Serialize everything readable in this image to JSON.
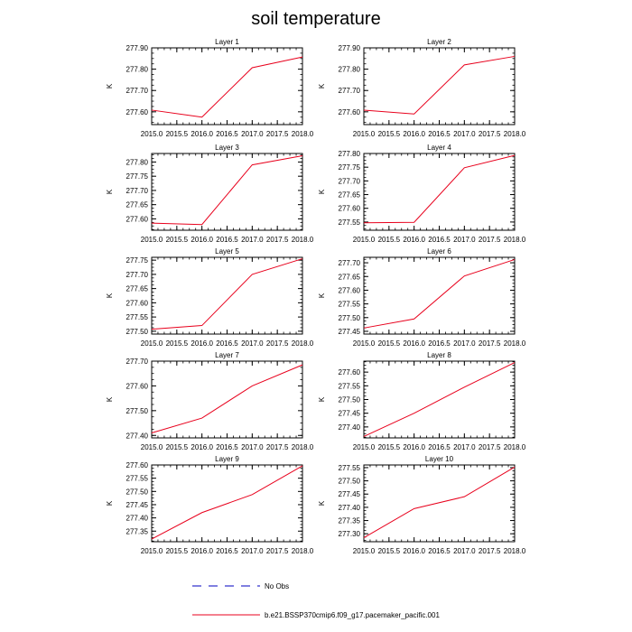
{
  "chart_data": {
    "type": "line",
    "title": "soil temperature",
    "x": [
      2015,
      2016,
      2017,
      2018
    ],
    "xticks": [
      "2015.0",
      "2015.5",
      "2016.0",
      "2016.5",
      "2017.0",
      "2017.5",
      "2018.0"
    ],
    "xlim": [
      2015,
      2018
    ],
    "ylabel": "K",
    "series_color": "#e8001c",
    "panels": [
      {
        "name": "Layer 1",
        "ylim": [
          277.54,
          277.9
        ],
        "yticks": [
          277.6,
          277.7,
          277.8,
          277.9
        ],
        "ytick_labels": [
          "277.60",
          "277.70",
          "277.80",
          "277.90"
        ],
        "values": [
          277.608,
          277.575,
          277.807,
          277.857
        ]
      },
      {
        "name": "Layer 2",
        "ylim": [
          277.54,
          277.9
        ],
        "yticks": [
          277.6,
          277.7,
          277.8,
          277.9
        ],
        "ytick_labels": [
          "277.60",
          "277.70",
          "277.80",
          "277.90"
        ],
        "values": [
          277.608,
          277.59,
          277.82,
          277.86
        ]
      },
      {
        "name": "Layer 3",
        "ylim": [
          277.56,
          277.83
        ],
        "yticks": [
          277.6,
          277.65,
          277.7,
          277.75,
          277.8
        ],
        "ytick_labels": [
          "277.60",
          "277.65",
          "277.70",
          "277.75",
          "277.80"
        ],
        "values": [
          277.585,
          277.58,
          277.79,
          277.822
        ]
      },
      {
        "name": "Layer 4",
        "ylim": [
          277.52,
          277.8
        ],
        "yticks": [
          277.55,
          277.6,
          277.65,
          277.7,
          277.75,
          277.8
        ],
        "ytick_labels": [
          "277.55",
          "277.60",
          "277.65",
          "277.70",
          "277.75",
          "277.80"
        ],
        "values": [
          277.547,
          277.549,
          277.748,
          277.793
        ]
      },
      {
        "name": "Layer 5",
        "ylim": [
          277.49,
          277.76
        ],
        "yticks": [
          277.5,
          277.55,
          277.6,
          277.65,
          277.7,
          277.75
        ],
        "ytick_labels": [
          "277.50",
          "277.55",
          "277.60",
          "277.65",
          "277.70",
          "277.75"
        ],
        "values": [
          277.507,
          277.52,
          277.7,
          277.755
        ]
      },
      {
        "name": "Layer 6",
        "ylim": [
          277.44,
          277.72
        ],
        "yticks": [
          277.45,
          277.5,
          277.55,
          277.6,
          277.65,
          277.7
        ],
        "ytick_labels": [
          "277.45",
          "277.50",
          "277.55",
          "277.60",
          "277.65",
          "277.70"
        ],
        "values": [
          277.462,
          277.495,
          277.652,
          277.712
        ]
      },
      {
        "name": "Layer 7",
        "ylim": [
          277.39,
          277.7
        ],
        "yticks": [
          277.4,
          277.5,
          277.6,
          277.7
        ],
        "ytick_labels": [
          "277.40",
          "277.50",
          "277.60",
          "277.70"
        ],
        "values": [
          277.41,
          277.47,
          277.6,
          277.685
        ]
      },
      {
        "name": "Layer 8",
        "ylim": [
          277.36,
          277.64
        ],
        "yticks": [
          277.4,
          277.45,
          277.5,
          277.55,
          277.6
        ],
        "ytick_labels": [
          "277.40",
          "277.45",
          "277.50",
          "277.55",
          "277.60"
        ],
        "values": [
          277.365,
          277.45,
          277.545,
          277.635
        ]
      },
      {
        "name": "Layer 9",
        "ylim": [
          277.31,
          277.6
        ],
        "yticks": [
          277.35,
          277.4,
          277.45,
          277.5,
          277.55,
          277.6
        ],
        "ytick_labels": [
          "277.35",
          "277.40",
          "277.45",
          "277.50",
          "277.55",
          "277.60"
        ],
        "values": [
          277.32,
          277.42,
          277.488,
          277.597
        ]
      },
      {
        "name": "Layer 10",
        "ylim": [
          277.27,
          277.56
        ],
        "yticks": [
          277.3,
          277.35,
          277.4,
          277.45,
          277.5,
          277.55
        ],
        "ytick_labels": [
          "277.30",
          "277.35",
          "277.40",
          "277.45",
          "277.50",
          "277.55"
        ],
        "values": [
          277.285,
          277.395,
          277.44,
          277.552
        ]
      }
    ],
    "legend": [
      {
        "label": "No Obs",
        "style": "dashed",
        "color": "#0000c0"
      },
      {
        "label": "b.e21.BSSP370cmip6.f09_g17.pacemaker_pacific.001",
        "style": "solid",
        "color": "#e8001c"
      }
    ]
  }
}
